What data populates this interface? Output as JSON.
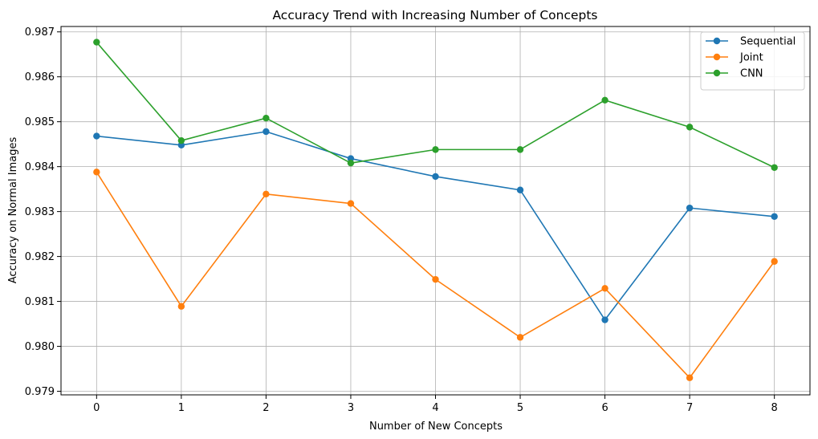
{
  "chart_data": {
    "type": "line",
    "title": "Accuracy Trend with Increasing Number of Concepts",
    "xlabel": "Number of New Concepts",
    "ylabel": "Accuracy on Normal Images",
    "x": [
      0,
      1,
      2,
      3,
      4,
      5,
      6,
      7,
      8
    ],
    "xlim": [
      -0.42,
      8.42
    ],
    "ylim": [
      0.97892,
      0.98712
    ],
    "x_ticks": [
      "0",
      "1",
      "2",
      "3",
      "4",
      "5",
      "6",
      "7",
      "8"
    ],
    "y_ticks": [
      "0.979",
      "0.980",
      "0.981",
      "0.982",
      "0.983",
      "0.984",
      "0.985",
      "0.986",
      "0.987"
    ],
    "grid": true,
    "legend_position": "top-right",
    "series": [
      {
        "name": "Sequential",
        "color": "#1f77b4",
        "marker": "circle",
        "values": [
          0.98468,
          0.98448,
          0.98478,
          0.98418,
          0.98378,
          0.98348,
          0.98059,
          0.98308,
          0.98289
        ]
      },
      {
        "name": "Joint",
        "color": "#ff7f0e",
        "marker": "circle",
        "values": [
          0.98388,
          0.98089,
          0.98339,
          0.98318,
          0.98149,
          0.9802,
          0.98129,
          0.9793,
          0.98189
        ]
      },
      {
        "name": "CNN",
        "color": "#2ca02c",
        "marker": "circle",
        "values": [
          0.98677,
          0.98458,
          0.98508,
          0.98408,
          0.98438,
          0.98438,
          0.98548,
          0.98488,
          0.98398
        ]
      }
    ]
  }
}
